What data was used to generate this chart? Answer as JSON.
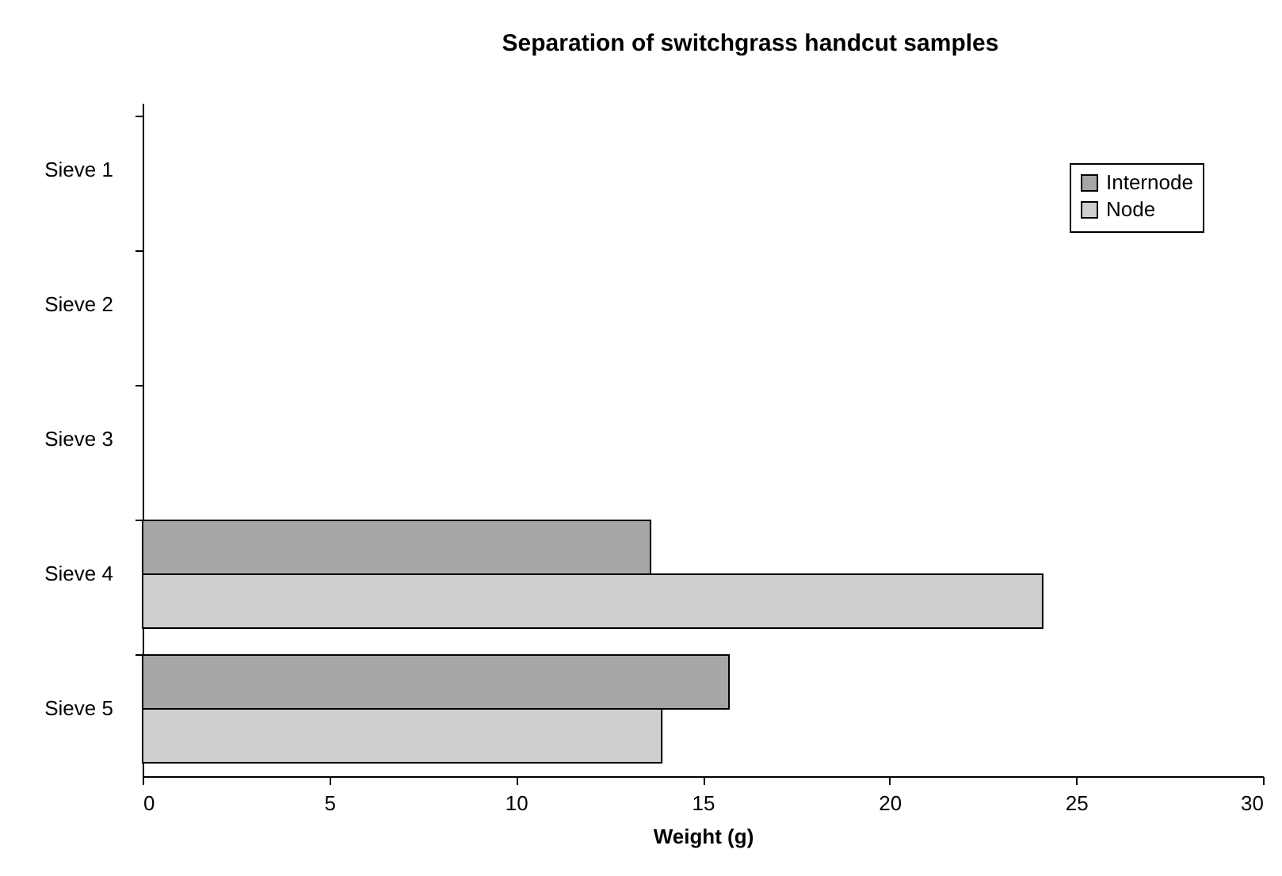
{
  "chart_data": {
    "type": "bar",
    "orientation": "horizontal",
    "title": "Separation of switchgrass handcut samples",
    "xlabel": "Weight (g)",
    "categories": [
      "Sieve 1",
      "Sieve 2",
      "Sieve 3",
      "Sieve 4",
      "Sieve 5"
    ],
    "series": [
      {
        "name": "Internode",
        "color": "#a6a6a6",
        "values": [
          null,
          null,
          null,
          13.6,
          15.7
        ]
      },
      {
        "name": "Node",
        "color": "#cfcfcf",
        "values": [
          null,
          null,
          null,
          24.1,
          13.9
        ]
      }
    ],
    "xlim": [
      0,
      30
    ],
    "xticks": [
      0,
      5,
      10,
      15,
      20,
      25,
      30
    ],
    "grid": false,
    "legend": "top right"
  }
}
